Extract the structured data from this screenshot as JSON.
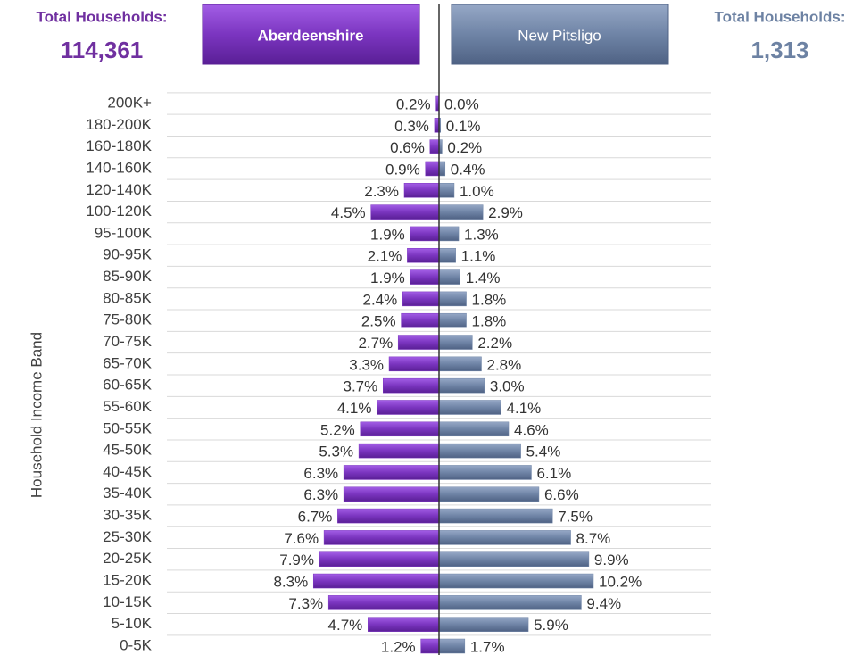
{
  "chart_data": {
    "type": "butterfly",
    "y_axis_label": "Household Income Band",
    "totals": [
      {
        "label": "Total Households:",
        "value": "114,361"
      },
      {
        "label": "Total Households:",
        "value": "1,313"
      }
    ],
    "categories": [
      "200K+",
      "180-200K",
      "160-180K",
      "140-160K",
      "120-140K",
      "100-120K",
      "95-100K",
      "90-95K",
      "85-90K",
      "80-85K",
      "75-80K",
      "70-75K",
      "65-70K",
      "60-65K",
      "55-60K",
      "50-55K",
      "45-50K",
      "40-45K",
      "35-40K",
      "30-35K",
      "25-30K",
      "20-25K",
      "15-20K",
      "10-15K",
      "5-10K",
      "0-5K"
    ],
    "series": [
      {
        "name": "Aberdeenshire",
        "color": "#7b35c0",
        "values": [
          0.2,
          0.3,
          0.6,
          0.9,
          2.3,
          4.5,
          1.9,
          2.1,
          1.9,
          2.4,
          2.5,
          2.7,
          3.3,
          3.7,
          4.1,
          5.2,
          5.3,
          6.3,
          6.3,
          6.7,
          7.6,
          7.9,
          8.3,
          7.3,
          4.7,
          1.2
        ],
        "value_labels": [
          "0.2%",
          "0.3%",
          "0.6%",
          "0.9%",
          "2.3%",
          "4.5%",
          "1.9%",
          "2.1%",
          "1.9%",
          "2.4%",
          "2.5%",
          "2.7%",
          "3.3%",
          "3.7%",
          "4.1%",
          "5.2%",
          "5.3%",
          "6.3%",
          "6.3%",
          "6.7%",
          "7.6%",
          "7.9%",
          "8.3%",
          "7.3%",
          "4.7%",
          "1.2%"
        ]
      },
      {
        "name": "New Pitsligo",
        "color": "#6f84a6",
        "values": [
          0.0,
          0.1,
          0.2,
          0.4,
          1.0,
          2.9,
          1.3,
          1.1,
          1.4,
          1.8,
          1.8,
          2.2,
          2.8,
          3.0,
          4.1,
          4.6,
          5.4,
          6.1,
          6.6,
          7.5,
          8.7,
          9.9,
          10.2,
          9.4,
          5.9,
          1.7
        ],
        "value_labels": [
          "0.0%",
          "0.1%",
          "0.2%",
          "0.4%",
          "1.0%",
          "2.9%",
          "1.3%",
          "1.1%",
          "1.4%",
          "1.8%",
          "1.8%",
          "2.2%",
          "2.8%",
          "3.0%",
          "4.1%",
          "4.6%",
          "5.4%",
          "6.1%",
          "6.6%",
          "7.5%",
          "8.7%",
          "9.9%",
          "10.2%",
          "9.4%",
          "5.9%",
          "1.7%"
        ]
      }
    ],
    "grid": true
  }
}
